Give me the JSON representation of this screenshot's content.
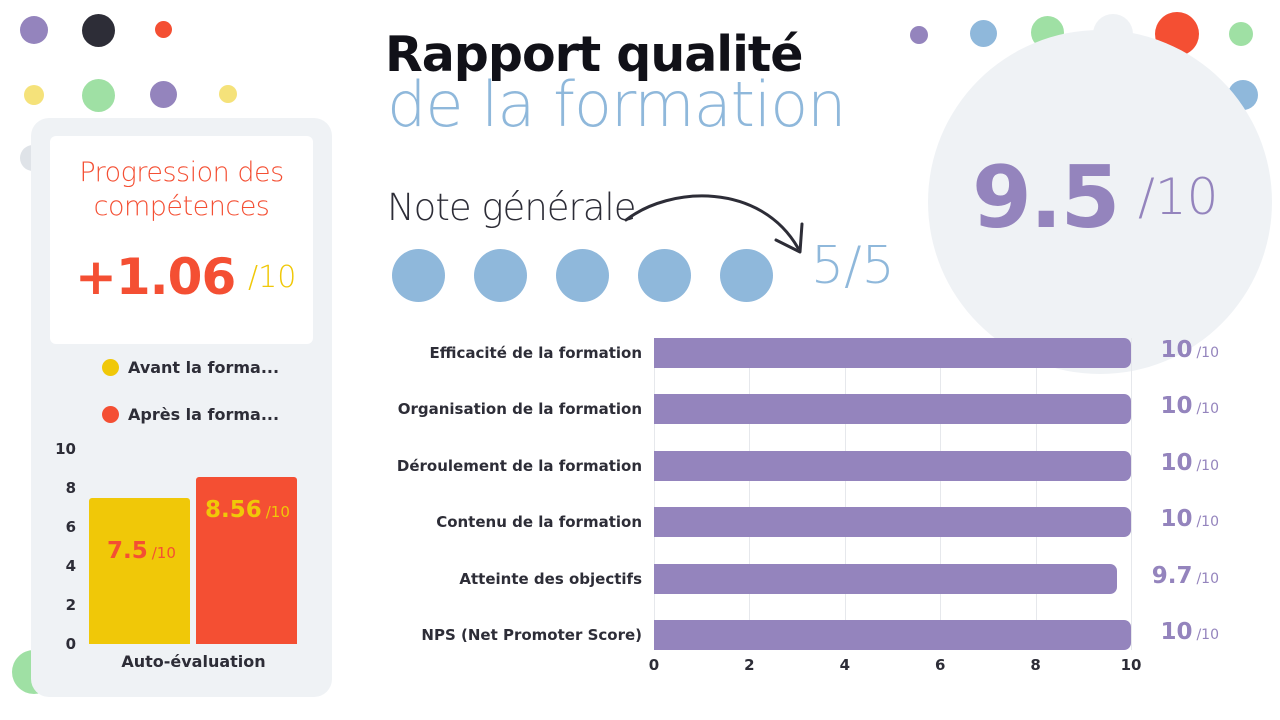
{
  "title": {
    "line1": "Rapport qualité",
    "line2": "de la formation"
  },
  "overall": {
    "label": "Note générale",
    "rating": "5/5",
    "rating_value": 5,
    "rating_max": 5,
    "score": "9.5",
    "score_denom": "/10"
  },
  "progression": {
    "title_line1": "Progression des",
    "title_line2": "compétences",
    "value": "+1.06",
    "denom": "/10"
  },
  "colors": {
    "before": "#f0c808",
    "after": "#f44f33",
    "accent_purple": "#9484bd",
    "accent_blue": "#8fb8db",
    "panel_bg": "#eff2f5"
  },
  "chart_data": [
    {
      "type": "bar",
      "orientation": "vertical",
      "categories": [
        "Auto-évaluation"
      ],
      "series": [
        {
          "name": "Avant la forma...",
          "values": [
            7.5
          ],
          "label": "7.5",
          "denom": "/10",
          "color": "#f0c808"
        },
        {
          "name": "Après la forma...",
          "values": [
            8.56
          ],
          "label": "8.56",
          "denom": "/10",
          "color": "#f44f33"
        }
      ],
      "ylim": [
        0,
        10
      ],
      "yticks": [
        "0",
        "2",
        "4",
        "6",
        "8",
        "10"
      ],
      "legend": "top",
      "grid": false
    },
    {
      "type": "bar",
      "orientation": "horizontal",
      "categories": [
        "Efficacité de la formation",
        "Organisation de la formation",
        "Déroulement de la formation",
        "Contenu de la formation",
        "Atteinte des objectifs",
        "NPS (Net Promoter Score)"
      ],
      "values": [
        10,
        10,
        10,
        10,
        9.7,
        10
      ],
      "value_labels": [
        "10",
        "10",
        "10",
        "10",
        "9.7",
        "10"
      ],
      "value_denom": "/10",
      "xlim": [
        0,
        10
      ],
      "xticks": [
        "0",
        "2",
        "4",
        "6",
        "8",
        "10"
      ],
      "grid": true,
      "color": "#9484bd"
    }
  ]
}
